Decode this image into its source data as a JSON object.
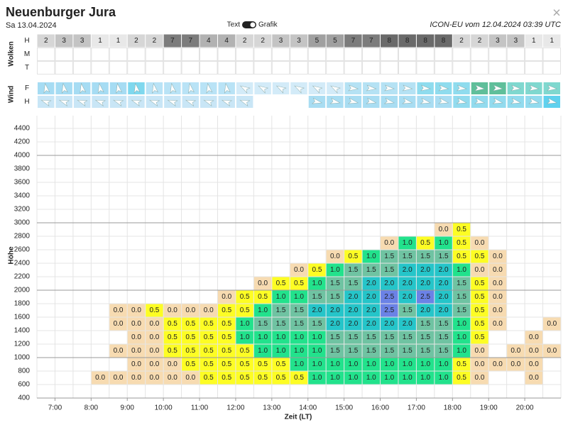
{
  "header": {
    "title": "Neuenburger Jura",
    "date": "Sa 13.04.2024",
    "toggle_left": "Text",
    "toggle_right": "Grafik",
    "model": "ICON-EU vom 12.04.2024 03:39 UTC",
    "close": "×"
  },
  "clouds": {
    "label": "Wolken",
    "rows": [
      {
        "name": "H",
        "values": [
          2,
          3,
          3,
          1,
          1,
          2,
          2,
          7,
          7,
          4,
          4,
          2,
          2,
          3,
          3,
          5,
          5,
          7,
          7,
          8,
          8,
          8,
          8,
          2,
          2,
          3,
          3,
          1,
          1
        ]
      },
      {
        "name": "M"
      },
      {
        "name": "T"
      }
    ]
  },
  "wind": {
    "label": "Wind",
    "rows": [
      {
        "name": "F",
        "colors": [
          "#a6dcf3",
          "#a6dcf3",
          "#a6dcf3",
          "#a6dcf3",
          "#a6dcf3",
          "#7fd8ee",
          "#b9e3f6",
          "#b9e3f6",
          "#b9e3f6",
          "#b9e3f6",
          "#b9e3f6",
          "#d3ebf8",
          "#d3ebf8",
          "#d3ebf8",
          "#d3ebf8",
          "#d3ebf8",
          "#d3ebf8",
          "#b5e2f4",
          "#b5e2f4",
          "#b5e2f4",
          "#b5e2f4",
          "#8fdcee",
          "#8fdcee",
          "#8fdcee",
          "#5fbf9a",
          "#5fbf9a",
          "#7fd8cf",
          "#7fd8cf",
          "#7fd8cf"
        ]
      },
      {
        "name": "H",
        "colors": [
          "#c9e6f6",
          "#c9e6f6",
          "#c9e6f6",
          "#c9e6f6",
          "#c9e6f6",
          "#c9e6f6",
          "#c9e6f6",
          "#c9e6f6",
          "#c9e6f6",
          "#c9e6f6",
          "#c9e6f6",
          "#c9e6f6",
          "#ffffff",
          "#ffffff",
          "#ffffff",
          "#a9ddf2",
          "#a9ddf2",
          "#a9ddf2",
          "#a9ddf2",
          "#a9ddf2",
          "#a9ddf2",
          "#a9ddf2",
          "#a9ddf2",
          "#92dbee",
          "#92dbee",
          "#92dbee",
          "#92dbee",
          "#92dbee",
          "#5fd1ee"
        ]
      }
    ]
  },
  "chart": {
    "ylabel": "Höhe",
    "xlabel": "Zeit (LT)",
    "ylim": [
      400,
      4400
    ],
    "yticks": [
      400,
      600,
      800,
      1000,
      1200,
      1400,
      1600,
      1800,
      2000,
      2200,
      2400,
      2600,
      2800,
      3000,
      3200,
      3400,
      3600,
      3800,
      4000,
      4200,
      4400
    ],
    "xticks": [
      "7:00",
      "8:00",
      "9:00",
      "10:00",
      "11:00",
      "12:00",
      "13:00",
      "14:00",
      "15:00",
      "16:00",
      "17:00",
      "18:00",
      "19:00",
      "20:00"
    ],
    "grid": true,
    "cell_colors": {
      "0.0": "#f7dbb1",
      "0.5": "#fdfd24",
      "1.0": "#22e28c",
      "1.5": "#6fc3a2",
      "2.0": "#25c5c9",
      "2.5": "#6b82e6"
    },
    "rows": [
      [
        null,
        null,
        null,
        "0.0",
        "0.0",
        "0.0",
        "0.0",
        "0.0",
        "0.0",
        "0.5",
        "0.5",
        "0.5",
        "0.5",
        "0.5",
        "0.5",
        "1.0",
        "1.0",
        "1.0",
        "1.0",
        "1.0",
        "1.0",
        "1.0",
        "1.0",
        "0.5",
        "0.0",
        null,
        null,
        "0.0",
        null
      ],
      [
        null,
        null,
        null,
        null,
        null,
        "0.0",
        "0.0",
        "0.0",
        "0.5",
        "0.5",
        "0.5",
        "0.5",
        "0.5",
        "0.5",
        "1.0",
        "1.0",
        "1.0",
        "1.0",
        "1.0",
        "1.0",
        "1.0",
        "1.0",
        "1.0",
        "0.5",
        "0.0",
        "0.0",
        "0.0",
        "0.0",
        null
      ],
      [
        null,
        null,
        null,
        null,
        "0.0",
        "0.0",
        "0.0",
        "0.5",
        "0.5",
        "0.5",
        "0.5",
        "0.5",
        "1.0",
        "1.0",
        "1.0",
        "1.0",
        "1.5",
        "1.5",
        "1.5",
        "1.5",
        "1.5",
        "1.5",
        "1.5",
        "1.0",
        "0.0",
        null,
        "0.0",
        "0.0",
        "0.0"
      ],
      [
        null,
        null,
        null,
        null,
        null,
        "0.0",
        "0.0",
        "0.5",
        "0.5",
        "0.5",
        "0.5",
        "1.0",
        "1.0",
        "1.0",
        "1.0",
        "1.0",
        "1.5",
        "1.5",
        "1.5",
        "1.5",
        "1.5",
        "1.5",
        "1.5",
        "1.0",
        "0.5",
        null,
        null,
        "0.0",
        null
      ],
      [
        null,
        null,
        null,
        null,
        "0.0",
        "0.0",
        "0.0",
        "0.5",
        "0.5",
        "0.5",
        "0.5",
        "1.0",
        "1.5",
        "1.5",
        "1.5",
        "1.5",
        "2.0",
        "2.0",
        "2.0",
        "2.0",
        "2.0",
        "1.5",
        "1.5",
        "1.0",
        "0.5",
        "0.0",
        null,
        null,
        "0.0"
      ],
      [
        null,
        null,
        null,
        null,
        "0.0",
        "0.0",
        "0.5",
        "0.0",
        "0.0",
        "0.0",
        "0.5",
        "0.5",
        "1.0",
        "1.5",
        "1.5",
        "2.0",
        "2.0",
        "2.0",
        "2.0",
        "2.5",
        "1.5",
        "2.0",
        "2.0",
        "1.5",
        "0.5",
        "0.0",
        null,
        null,
        null
      ],
      [
        null,
        null,
        null,
        null,
        null,
        null,
        null,
        null,
        null,
        null,
        "0.0",
        "0.5",
        "0.5",
        "1.0",
        "1.0",
        "1.5",
        "1.5",
        "2.0",
        "2.0",
        "2.5",
        "2.0",
        "2.5",
        "2.0",
        "1.5",
        "0.5",
        "0.0",
        null,
        null,
        null
      ],
      [
        null,
        null,
        null,
        null,
        null,
        null,
        null,
        null,
        null,
        null,
        null,
        null,
        "0.0",
        "0.5",
        "0.5",
        "1.0",
        "1.5",
        "1.5",
        "2.0",
        "2.0",
        "2.0",
        "2.0",
        "2.0",
        "1.5",
        "0.5",
        "0.0",
        null,
        null,
        null
      ],
      [
        null,
        null,
        null,
        null,
        null,
        null,
        null,
        null,
        null,
        null,
        null,
        null,
        null,
        null,
        "0.0",
        "0.5",
        "1.0",
        "1.5",
        "1.5",
        "1.5",
        "2.0",
        "2.0",
        "2.0",
        "1.0",
        "0.0",
        "0.0",
        null,
        null,
        null
      ],
      [
        null,
        null,
        null,
        null,
        null,
        null,
        null,
        null,
        null,
        null,
        null,
        null,
        null,
        null,
        null,
        null,
        "0.0",
        "0.5",
        "1.0",
        "1.5",
        "1.5",
        "1.5",
        "1.5",
        "0.5",
        "0.5",
        "0.0",
        null,
        null,
        null
      ],
      [
        null,
        null,
        null,
        null,
        null,
        null,
        null,
        null,
        null,
        null,
        null,
        null,
        null,
        null,
        null,
        null,
        null,
        null,
        null,
        "0.0",
        "1.0",
        "0.5",
        "1.0",
        "0.5",
        "0.0",
        null,
        null,
        null,
        null
      ],
      [
        null,
        null,
        null,
        null,
        null,
        null,
        null,
        null,
        null,
        null,
        null,
        null,
        null,
        null,
        null,
        null,
        null,
        null,
        null,
        null,
        null,
        null,
        "0.0",
        "0.5",
        null,
        null,
        null,
        null,
        null
      ]
    ]
  }
}
